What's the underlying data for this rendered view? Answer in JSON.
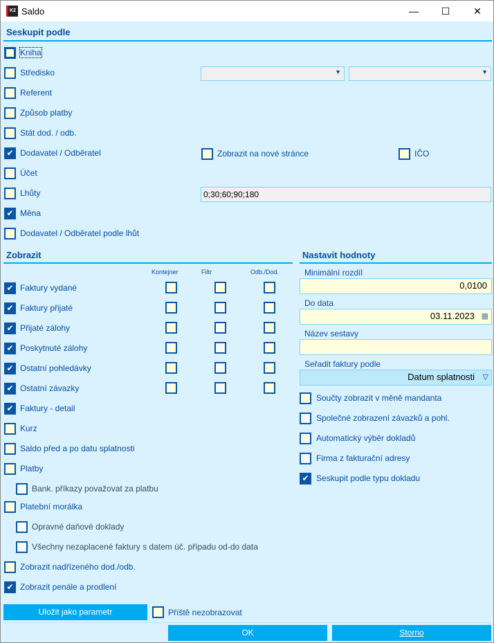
{
  "window": {
    "title": "Saldo",
    "minimize": "—",
    "maximize": "☐",
    "close": "✕"
  },
  "group": {
    "header": "Seskupit podle",
    "items": [
      {
        "label": "Kniha",
        "checked": false
      },
      {
        "label": "Středisko",
        "checked": false
      },
      {
        "label": "Referent",
        "checked": false
      },
      {
        "label": "Způsob platby",
        "checked": false
      },
      {
        "label": "Stát dod. / odb.",
        "checked": false
      },
      {
        "label": "Dodavatel / Odběratel",
        "checked": true
      },
      {
        "label": "Účet",
        "checked": false
      },
      {
        "label": "Lhůty",
        "checked": false
      },
      {
        "label": "Měna",
        "checked": true
      },
      {
        "label": "Dodavatel / Odběratel podle lhůt",
        "checked": false
      }
    ],
    "new_page": {
      "label": "Zobrazit na nové stránce",
      "checked": false
    },
    "ico": {
      "label": "IČO",
      "checked": false
    },
    "lhuty_value": "0;30;60;90;180"
  },
  "show": {
    "header": "Zobrazit",
    "columns": [
      "Kontejner",
      "Filtr",
      "Odb./Dod."
    ],
    "items": [
      {
        "label": "Faktury vydané",
        "checked": true,
        "grid": true
      },
      {
        "label": "Faktury přijaté",
        "checked": true,
        "grid": true
      },
      {
        "label": "Přijaté zálohy",
        "checked": true,
        "grid": true
      },
      {
        "label": "Poskytnuté zálohy",
        "checked": true,
        "grid": true
      },
      {
        "label": "Ostatní pohledávky",
        "checked": true,
        "grid": true
      },
      {
        "label": "Ostatní závazky",
        "checked": true,
        "grid": true
      },
      {
        "label": "Faktury - detail",
        "checked": true
      },
      {
        "label": "Kurz",
        "checked": false
      },
      {
        "label": "Saldo před a po datu splatnosti",
        "checked": false
      },
      {
        "label": "Platby",
        "checked": false
      },
      {
        "label": "Bank. příkazy považovat za platbu",
        "checked": false,
        "sub": true
      },
      {
        "label": "Platební morálka",
        "checked": false
      },
      {
        "label": "Opravné daňové doklady",
        "checked": false,
        "sub": true
      },
      {
        "label": "Všechny nezaplacené faktury s datem úč. případu od-do data",
        "checked": false,
        "sub": true
      },
      {
        "label": "Zobrazit nadřízeného dod./odb.",
        "checked": false
      },
      {
        "label": "Zobrazit penále a prodlení",
        "checked": true
      }
    ]
  },
  "values": {
    "header": "Nastavit hodnoty",
    "min_diff_label": "Minimální rozdíl",
    "min_diff": "0,0100",
    "date_label": "Do data",
    "date": "03.11.2023",
    "report_name_label": "Název sestavy",
    "report_name": "",
    "sort_label": "Seřadit faktury podle",
    "sort": "Datum splatnosti",
    "items": [
      {
        "label": "Součty zobrazit v měně mandanta",
        "checked": false
      },
      {
        "label": "Společné zobrazení závazků a pohl.",
        "checked": false
      },
      {
        "label": "Automatický výběr dokladů",
        "checked": false
      },
      {
        "label": "Firma z fakturační adresy",
        "checked": false
      },
      {
        "label": "Seskupit podle typu dokladu",
        "checked": true
      }
    ]
  },
  "footer": {
    "save_param": "Uložit jako parametr",
    "dont_show": "Příště nezobrazovat",
    "ok": "OK",
    "cancel": "Storno"
  },
  "colors": {
    "background": "#d9f2fd",
    "accent": "#00aaee",
    "text": "#0a4da0",
    "checkbox": "#ffffe0"
  }
}
